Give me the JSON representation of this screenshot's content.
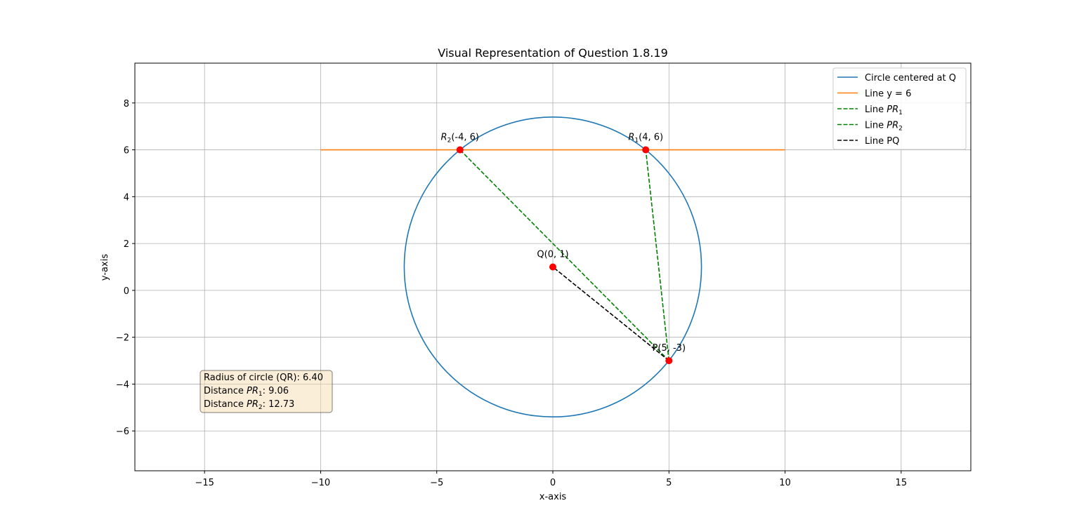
{
  "chart_data": {
    "type": "line",
    "title": "Visual Representation of Question 1.8.19",
    "xlabel": "x-axis",
    "ylabel": "y-axis",
    "xlim": [
      -18,
      18
    ],
    "ylim": [
      -7.7,
      9.7
    ],
    "xticks": [
      -15,
      -10,
      -5,
      0,
      5,
      10,
      15
    ],
    "yticks": [
      -6,
      -4,
      -2,
      0,
      2,
      4,
      6,
      8
    ],
    "grid": true,
    "legend_position": "top-right",
    "circle": {
      "center": [
        0,
        1
      ],
      "radius": 6.4,
      "color": "#1f77b4"
    },
    "series": [
      {
        "name": "Circle centered at Q",
        "style": "solid",
        "color": "#1f77b4"
      },
      {
        "name": "Line y = 6",
        "style": "solid",
        "color": "#ff7f0e",
        "x": [
          -10,
          10
        ],
        "y": [
          6,
          6
        ]
      },
      {
        "name": "Line PR1",
        "style": "dashed",
        "color": "#008000",
        "x": [
          5,
          4
        ],
        "y": [
          -3,
          6
        ]
      },
      {
        "name": "Line PR2",
        "style": "dashed",
        "color": "#008000",
        "x": [
          5,
          -4
        ],
        "y": [
          -3,
          6
        ]
      },
      {
        "name": "Line PQ",
        "style": "dashed",
        "color": "#000000",
        "x": [
          5,
          0
        ],
        "y": [
          -3,
          1
        ]
      }
    ],
    "points": [
      {
        "x": 0,
        "y": 1,
        "label": "Q(0, 1)"
      },
      {
        "x": 5,
        "y": -3,
        "label": "P(5, -3)"
      },
      {
        "x": 4,
        "y": 6,
        "label_main": "R",
        "label_sub": "1",
        "label_rest": "(4, 6)"
      },
      {
        "x": -4,
        "y": 6,
        "label_main": "R",
        "label_sub": "2",
        "label_rest": "(-4, 6)"
      }
    ],
    "info_box": {
      "line1": "Radius of circle (QR): 6.40",
      "line2_prefix": "Distance ",
      "line2_var": "PR",
      "line2_sub": "1",
      "line2_value": ": 9.06",
      "line3_prefix": "Distance ",
      "line3_var": "PR",
      "line3_sub": "2",
      "line3_value": ": 12.73"
    },
    "point_color": "#ff0000"
  }
}
